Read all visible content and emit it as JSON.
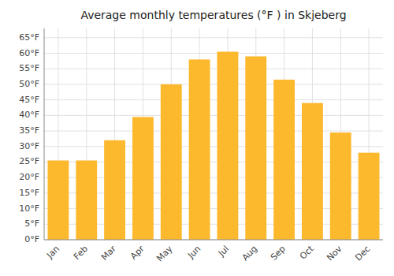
{
  "chart_data": {
    "type": "bar",
    "title": "Average monthly temperatures (°F ) in Skjeberg",
    "categories": [
      "Jan",
      "Feb",
      "Mar",
      "Apr",
      "May",
      "Jun",
      "Jul",
      "Aug",
      "Sep",
      "Oct",
      "Nov",
      "Dec"
    ],
    "values": [
      25.5,
      25.5,
      32,
      39.5,
      50,
      58,
      60.5,
      59,
      51.5,
      44,
      34.5,
      28
    ],
    "color": "#FDB92E",
    "ylim": [
      0,
      68
    ],
    "yticks": [
      {
        "value": 0,
        "label": "0°F"
      },
      {
        "value": 5,
        "label": "5°F"
      },
      {
        "value": 10,
        "label": "10°F"
      },
      {
        "value": 15,
        "label": "15°F"
      },
      {
        "value": 20,
        "label": "20°F"
      },
      {
        "value": 25,
        "label": "25°F"
      },
      {
        "value": 30,
        "label": "30°F"
      },
      {
        "value": 35,
        "label": "35°F"
      },
      {
        "value": 40,
        "label": "40°F"
      },
      {
        "value": 45,
        "label": "45°F"
      },
      {
        "value": 50,
        "label": "50°F"
      },
      {
        "value": 55,
        "label": "55°F"
      },
      {
        "value": 60,
        "label": "60°F"
      },
      {
        "value": 65,
        "label": "65°F"
      }
    ],
    "grid": true
  }
}
